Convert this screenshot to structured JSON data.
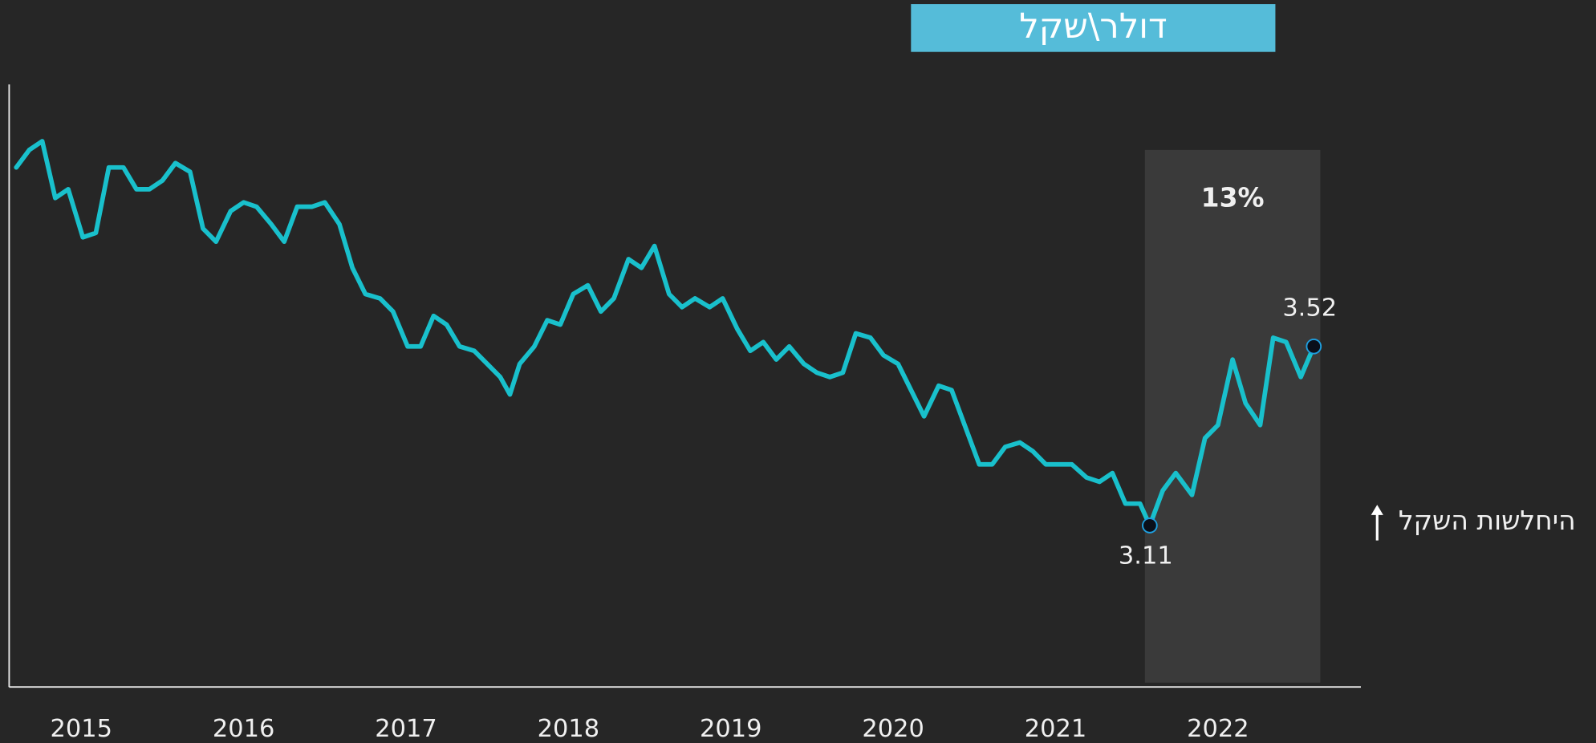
{
  "chart_data": {
    "type": "line",
    "title": "דולר\\שקל",
    "annotation": "היחלשות השקל",
    "x": [
      2015.1,
      2015.18,
      2015.26,
      2015.34,
      2015.42,
      2015.51,
      2015.59,
      2015.67,
      2015.76,
      2015.84,
      2015.92,
      2016.0,
      2016.08,
      2016.17,
      2016.25,
      2016.33,
      2016.42,
      2016.5,
      2016.58,
      2016.67,
      2016.75,
      2016.83,
      2016.92,
      2017.0,
      2017.09,
      2017.17,
      2017.25,
      2017.34,
      2017.42,
      2017.51,
      2017.59,
      2017.67,
      2017.75,
      2017.83,
      2017.92,
      2018.0,
      2018.08,
      2018.14,
      2018.2,
      2018.29,
      2018.37,
      2018.45,
      2018.53,
      2018.62,
      2018.7,
      2018.78,
      2018.87,
      2018.95,
      2019.03,
      2019.12,
      2019.2,
      2019.28,
      2019.37,
      2019.45,
      2019.54,
      2019.62,
      2019.7,
      2019.78,
      2019.86,
      2019.95,
      2020.03,
      2020.11,
      2020.19,
      2020.27,
      2020.36,
      2020.44,
      2020.53,
      2020.61,
      2020.69,
      2020.78,
      2020.86,
      2020.94,
      2021.03,
      2021.11,
      2021.19,
      2021.28,
      2021.36,
      2021.44,
      2021.52,
      2021.6,
      2021.69,
      2021.77,
      2021.85,
      2021.93,
      2022.02,
      2022.08,
      2022.16,
      2022.24,
      2022.34,
      2022.42,
      2022.5,
      2022.59,
      2022.67,
      2022.76,
      2022.84,
      2022.92,
      2023.01,
      2023.09
    ],
    "series": [
      {
        "name": "דולר\\שקל",
        "color": "#19c0cc",
        "values": [
          3.93,
          3.97,
          3.99,
          3.86,
          3.88,
          3.77,
          3.78,
          3.93,
          3.93,
          3.88,
          3.88,
          3.9,
          3.94,
          3.92,
          3.79,
          3.76,
          3.83,
          3.85,
          3.84,
          3.8,
          3.76,
          3.84,
          3.84,
          3.85,
          3.8,
          3.7,
          3.64,
          3.63,
          3.6,
          3.52,
          3.52,
          3.59,
          3.57,
          3.52,
          3.51,
          3.48,
          3.45,
          3.41,
          3.48,
          3.52,
          3.58,
          3.57,
          3.64,
          3.66,
          3.6,
          3.63,
          3.72,
          3.7,
          3.75,
          3.64,
          3.61,
          3.63,
          3.61,
          3.63,
          3.56,
          3.51,
          3.53,
          3.49,
          3.52,
          3.48,
          3.46,
          3.45,
          3.46,
          3.55,
          3.54,
          3.5,
          3.48,
          3.42,
          3.36,
          3.43,
          3.42,
          3.34,
          3.25,
          3.25,
          3.29,
          3.3,
          3.28,
          3.25,
          3.25,
          3.25,
          3.22,
          3.21,
          3.23,
          3.16,
          3.16,
          3.11,
          3.19,
          3.23,
          3.18,
          3.31,
          3.34,
          3.49,
          3.39,
          3.34,
          3.54,
          3.53,
          3.45,
          3.52
        ],
        "value_labels": [
          null,
          null,
          null,
          null,
          null,
          null,
          null,
          null,
          null,
          null,
          null,
          null,
          null,
          null,
          null,
          null,
          null,
          null,
          null,
          null,
          null,
          null,
          null,
          null,
          null,
          null,
          null,
          null,
          null,
          null,
          null,
          null,
          null,
          null,
          null,
          null,
          null,
          null,
          null,
          null,
          null,
          null,
          null,
          null,
          null,
          null,
          null,
          null,
          null,
          null,
          null,
          null,
          null,
          null,
          null,
          null,
          null,
          null,
          null,
          null,
          null,
          null,
          null,
          null,
          null,
          null,
          null,
          null,
          null,
          null,
          null,
          null,
          null,
          null,
          null,
          null,
          null,
          null,
          null,
          null,
          null,
          null,
          null,
          null,
          null,
          "3.11",
          null,
          null,
          null,
          null,
          null,
          null,
          null,
          null,
          null,
          null,
          null,
          "3.52"
        ]
      }
    ],
    "xlim": [
      2015.05,
      2023.38
    ],
    "xticks": [
      {
        "value": 2015.5,
        "label": "2015"
      },
      {
        "value": 2016.5,
        "label": "2016"
      },
      {
        "value": 2017.5,
        "label": "2017"
      },
      {
        "value": 2018.5,
        "label": "2018"
      },
      {
        "value": 2019.5,
        "label": "2019"
      },
      {
        "value": 2020.5,
        "label": "2020"
      },
      {
        "value": 2021.5,
        "label": "2021"
      },
      {
        "value": 2022.5,
        "label": "2022"
      }
    ],
    "ylim": [
      2.74,
      4.12
    ],
    "grid": false,
    "highlight": {
      "x": [
        2022.05,
        2023.13
      ],
      "y": [
        2.75,
        3.97
      ],
      "label": "13%",
      "color": "#3a3a3a"
    }
  }
}
